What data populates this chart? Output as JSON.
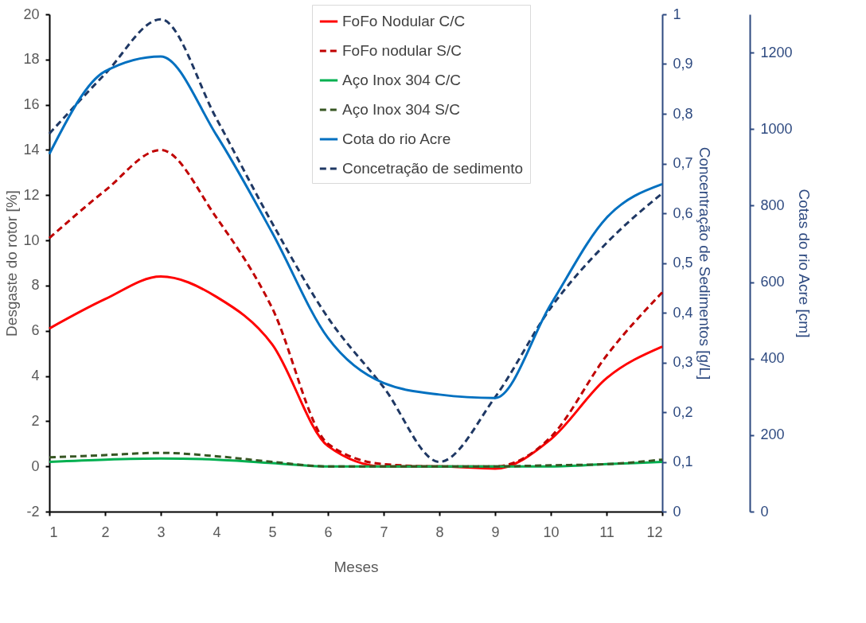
{
  "chart_data": {
    "type": "line",
    "xlabel": "Meses",
    "ylabel": "Desgaste do rotor [%]",
    "y2label": "Concentração de Sedimentos [g/L]",
    "y3label": "Cotas do rio Acre [cm]",
    "x": [
      1,
      2,
      3,
      4,
      5,
      6,
      7,
      8,
      9,
      10,
      11,
      12
    ],
    "xlim": [
      1,
      12
    ],
    "xticks": [
      1,
      2,
      3,
      4,
      5,
      6,
      7,
      8,
      9,
      10,
      11,
      12
    ],
    "ylim": [
      -2,
      20
    ],
    "yticks": [
      -2,
      0,
      2,
      4,
      6,
      8,
      10,
      12,
      14,
      16,
      18,
      20
    ],
    "y2lim": [
      0,
      1
    ],
    "y2ticks": [
      0,
      {
        "value": 0.1,
        "label": "0,1"
      },
      {
        "value": 0.2,
        "label": "0,2"
      },
      {
        "value": 0.3,
        "label": "0,3"
      },
      {
        "value": 0.4,
        "label": "0,4"
      },
      {
        "value": 0.5,
        "label": "0,5"
      },
      {
        "value": 0.6,
        "label": "0,6"
      },
      {
        "value": 0.7,
        "label": "0,7"
      },
      {
        "value": 0.8,
        "label": "0,8"
      },
      {
        "value": 0.9,
        "label": "0,9"
      },
      1
    ],
    "y3lim": [
      0,
      1300
    ],
    "y3ticks": [
      0,
      200,
      400,
      600,
      800,
      1000,
      1200
    ],
    "grid": false,
    "legend": "top",
    "marker": "none",
    "series": [
      {
        "name": "FoFo Nodular C/C",
        "color": "#ff0000",
        "line_style": "solid",
        "values": [
          6.1,
          7.4,
          8.4,
          7.5,
          5.4,
          0.9,
          0.0,
          0.0,
          -0.1,
          1.2,
          3.9,
          5.3
        ]
      },
      {
        "name": "FoFo nodular S/C",
        "color": "#c00000",
        "line_style": "dashed",
        "values": [
          10.1,
          12.2,
          14.0,
          11.0,
          7.0,
          1.0,
          0.1,
          0.0,
          0.0,
          1.3,
          4.9,
          7.7
        ]
      },
      {
        "name": "Aço Inox 304 C/C",
        "color": "#00b050",
        "line_style": "solid",
        "values": [
          0.2,
          0.3,
          0.35,
          0.3,
          0.15,
          0.0,
          0.0,
          0.0,
          0.0,
          0.0,
          0.1,
          0.2
        ]
      },
      {
        "name": "Aço Inox 304 S/C",
        "color": "#375623",
        "line_style": "dashed",
        "values": [
          0.4,
          0.5,
          0.6,
          0.45,
          0.2,
          0.0,
          0.0,
          0.0,
          0.0,
          0.05,
          0.1,
          0.3
        ]
      },
      {
        "name": "Cota do rio Acre",
        "color": "#0070c0",
        "line_style": "solid",
        "axis": "y3",
        "values": [
          935,
          1151,
          1190,
          984,
          729,
          454,
          336,
          306,
          297,
          542,
          768,
          856
        ]
      },
      {
        "name": "Concetração de sedimento",
        "color": "#1f3864",
        "line_style": "dashed",
        "axis": "y2",
        "values": [
          0.76,
          0.88,
          0.99,
          0.79,
          0.58,
          0.39,
          0.25,
          0.1,
          0.23,
          0.41,
          0.54,
          0.64
        ]
      }
    ]
  }
}
